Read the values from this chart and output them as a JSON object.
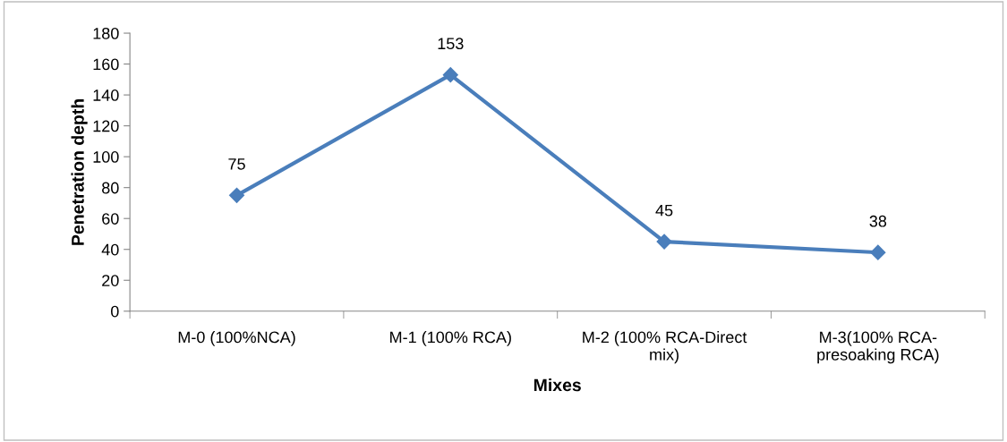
{
  "chart_data": {
    "type": "line",
    "xlabel": "Mixes",
    "ylabel": "Penetration depth",
    "categories": [
      "M-0 (100%NCA)",
      "M-1 (100% RCA)",
      "M-2 (100% RCA-Direct\nmix)",
      "M-3(100% RCA-\npresoaking RCA)"
    ],
    "series": [
      {
        "color": "#4a7ebb",
        "values": [
          75,
          153,
          45,
          38
        ]
      }
    ],
    "ylim": [
      0,
      180
    ],
    "yticks": [
      0,
      20,
      40,
      60,
      80,
      100,
      120,
      140,
      160,
      180
    ],
    "marker": "diamond",
    "line_style": "solid",
    "data_labels": true,
    "grid": false,
    "legend": false
  }
}
